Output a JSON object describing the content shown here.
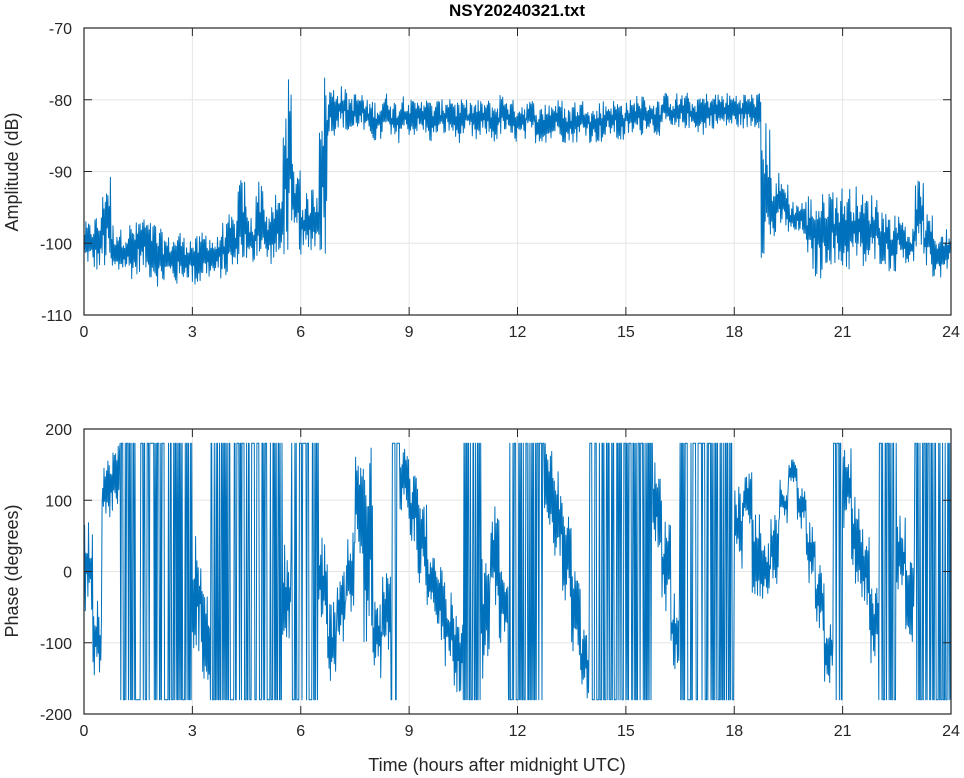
{
  "chart_data": [
    {
      "type": "line",
      "title": "NSY20240321.txt",
      "xlabel": "",
      "ylabel": "Amplitude (dB)",
      "xlim": [
        0,
        24
      ],
      "ylim": [
        -110,
        -70
      ],
      "xticks": [
        0,
        3,
        6,
        9,
        12,
        15,
        18,
        21,
        24
      ],
      "yticks": [
        -110,
        -100,
        -90,
        -80,
        -70
      ],
      "grid": true,
      "color": "#0072bd",
      "bin_hours": 0.25,
      "envelope_note": "min/max per 0.25 h bin",
      "y_min": [
        -103,
        -104,
        -104,
        -105,
        -104,
        -105,
        -104,
        -105,
        -106,
        -105,
        -106,
        -105,
        -106,
        -105,
        -105,
        -105,
        -104,
        -103,
        -103,
        -102,
        -103,
        -103,
        -102,
        -101,
        -102,
        -101,
        -102,
        -85,
        -84,
        -85,
        -84,
        -85,
        -86,
        -85,
        -86,
        -85,
        -85,
        -85,
        -86,
        -85,
        -85,
        -86,
        -85,
        -86,
        -85,
        -86,
        -85,
        -86,
        -86,
        -85,
        -86,
        -86,
        -85,
        -86,
        -86,
        -85,
        -86,
        -86,
        -85,
        -86,
        -85,
        -85,
        -84,
        -85,
        -84,
        -85,
        -84,
        -84,
        -85,
        -84,
        -84,
        -84,
        -84,
        -84,
        -84,
        -102,
        -100,
        -98,
        -99,
        -99,
        -104,
        -105,
        -103,
        -104,
        -104,
        -103,
        -104,
        -103,
        -103,
        -104,
        -102,
        -103,
        -101,
        -104,
        -105,
        -104
      ],
      "y_max": [
        -97,
        -96,
        -90,
        -97,
        -98,
        -97,
        -96,
        -97,
        -98,
        -99,
        -98,
        -99,
        -99,
        -98,
        -99,
        -97,
        -96,
        -91,
        -96,
        -91,
        -95,
        -93,
        -77,
        -88,
        -93,
        -92,
        -76,
        -78,
        -78,
        -79,
        -79,
        -80,
        -80,
        -79,
        -80,
        -79,
        -80,
        -79,
        -80,
        -80,
        -79,
        -80,
        -80,
        -80,
        -80,
        -80,
        -79,
        -80,
        -80,
        -80,
        -81,
        -80,
        -80,
        -81,
        -80,
        -80,
        -81,
        -80,
        -80,
        -80,
        -80,
        -79,
        -80,
        -80,
        -79,
        -79,
        -79,
        -80,
        -79,
        -79,
        -79,
        -79,
        -79,
        -79,
        -79,
        -83,
        -90,
        -91,
        -94,
        -94,
        -93,
        -93,
        -92,
        -92,
        -92,
        -92,
        -93,
        -93,
        -95,
        -96,
        -96,
        -98,
        -91,
        -96,
        -98,
        -98
      ]
    },
    {
      "type": "line",
      "title": "",
      "xlabel": "Time (hours after midnight UTC)",
      "ylabel": "Phase (degrees)",
      "xlim": [
        0,
        24
      ],
      "ylim": [
        -200,
        200
      ],
      "xticks": [
        0,
        3,
        6,
        9,
        12,
        15,
        18,
        21,
        24
      ],
      "yticks": [
        -200,
        -100,
        0,
        100,
        200
      ],
      "grid": true,
      "color": "#0072bd",
      "bin_hours": 0.25,
      "envelope_note": "min/max per 0.25 h bin, phase wraps at ±180",
      "y_min": [
        -60,
        -175,
        60,
        80,
        -180,
        -180,
        -180,
        -180,
        -180,
        -180,
        -180,
        -180,
        -120,
        -160,
        -180,
        -180,
        -180,
        -180,
        -180,
        -180,
        -180,
        -180,
        -100,
        -180,
        -180,
        -180,
        -80,
        -160,
        -100,
        -60,
        20,
        -100,
        -150,
        -120,
        -180,
        80,
        30,
        -20,
        -60,
        -100,
        -140,
        -170,
        -180,
        -180,
        -150,
        -60,
        -100,
        -180,
        -180,
        -180,
        -180,
        60,
        20,
        -40,
        -120,
        -180,
        -180,
        -180,
        -180,
        -180,
        -180,
        -180,
        -180,
        20,
        -60,
        -140,
        -180,
        -180,
        -180,
        -180,
        -180,
        -180,
        0,
        60,
        -40,
        -40,
        -20,
        60,
        110,
        60,
        -20,
        -100,
        -160,
        -180,
        60,
        -20,
        -60,
        -130,
        -180,
        -180,
        -40,
        -100,
        -180,
        -180,
        -180,
        -180
      ],
      "y_max": [
        75,
        -20,
        160,
        180,
        180,
        180,
        180,
        180,
        180,
        180,
        180,
        180,
        60,
        -20,
        180,
        180,
        180,
        180,
        180,
        180,
        180,
        180,
        40,
        180,
        180,
        180,
        50,
        -40,
        0,
        60,
        180,
        180,
        -40,
        0,
        180,
        180,
        140,
        100,
        40,
        20,
        -30,
        -60,
        180,
        180,
        20,
        100,
        20,
        180,
        180,
        180,
        180,
        180,
        140,
        80,
        0,
        -80,
        180,
        180,
        180,
        180,
        180,
        180,
        180,
        160,
        80,
        -20,
        180,
        180,
        180,
        180,
        180,
        180,
        120,
        140,
        80,
        40,
        80,
        130,
        160,
        120,
        80,
        20,
        -60,
        180,
        180,
        110,
        60,
        -20,
        180,
        180,
        80,
        20,
        180,
        180,
        180,
        180
      ]
    }
  ]
}
